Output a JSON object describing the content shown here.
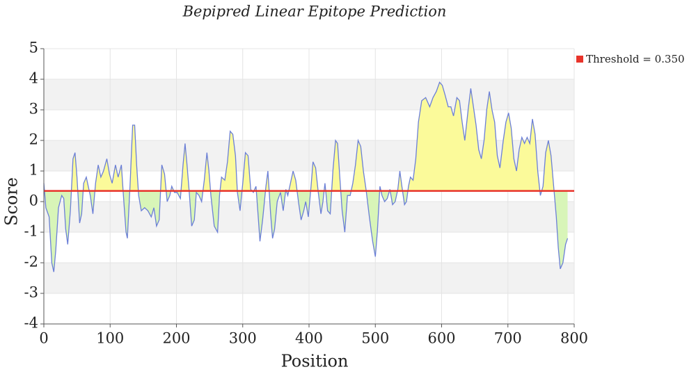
{
  "chart_data": {
    "type": "line",
    "title": "Bepipred Linear Epitope Prediction",
    "x_label": "Position",
    "y_label": "Score",
    "xlim": [
      0,
      800
    ],
    "xticks": [
      0,
      100,
      200,
      300,
      400,
      500,
      600,
      700,
      800
    ],
    "ylim": [
      -4,
      5
    ],
    "yticks": [
      -4,
      -3,
      -2,
      -1,
      0,
      1,
      2,
      3,
      4,
      5
    ],
    "grid": true,
    "threshold": {
      "name": "Threshold = 0.350",
      "value": 0.35,
      "color": "#e8332a"
    },
    "series": [
      {
        "color": "#6b7fd7",
        "above_color": "#fbfa9a",
        "below_color": "#d8f5b8",
        "x": [
          0,
          3,
          8,
          12,
          15,
          18,
          22,
          27,
          30,
          33,
          36,
          40,
          44,
          47,
          50,
          54,
          57,
          60,
          64,
          67,
          70,
          74,
          78,
          82,
          86,
          90,
          95,
          99,
          103,
          108,
          112,
          117,
          120,
          124,
          126,
          130,
          134,
          137,
          140,
          143,
          147,
          152,
          157,
          162,
          166,
          170,
          174,
          178,
          182,
          186,
          190,
          193,
          197,
          201,
          206,
          210,
          213,
          216,
          219,
          223,
          227,
          230,
          234,
          238,
          242,
          246,
          249,
          252,
          257,
          262,
          265,
          268,
          273,
          277,
          281,
          285,
          289,
          292,
          296,
          300,
          304,
          308,
          312,
          316,
          320,
          323,
          326,
          330,
          335,
          338,
          342,
          345,
          348,
          352,
          357,
          361,
          365,
          368,
          372,
          376,
          380,
          384,
          388,
          392,
          395,
          399,
          403,
          406,
          410,
          414,
          418,
          421,
          424,
          428,
          432,
          436,
          440,
          443,
          447,
          450,
          454,
          458,
          462,
          466,
          470,
          474,
          478,
          482,
          486,
          491,
          496,
          500,
          503,
          507,
          510,
          514,
          518,
          522,
          526,
          530,
          534,
          537,
          540,
          544,
          547,
          550,
          553,
          557,
          561,
          565,
          570,
          576,
          582,
          587,
          592,
          597,
          601,
          605,
          610,
          614,
          618,
          623,
          627,
          631,
          635,
          640,
          644,
          648,
          652,
          656,
          660,
          664,
          668,
          672,
          676,
          680,
          684,
          688,
          693,
          697,
          701,
          705,
          709,
          713,
          717,
          721,
          725,
          729,
          733,
          737,
          741,
          745,
          749,
          753,
          757,
          761,
          765,
          769,
          773,
          776,
          779,
          783,
          787,
          790
        ],
        "values": [
          0.6,
          -0.2,
          -0.5,
          -2.0,
          -2.3,
          -1.6,
          -0.2,
          0.2,
          0.1,
          -0.9,
          -1.4,
          -0.3,
          1.4,
          1.6,
          0.8,
          -0.7,
          -0.4,
          0.6,
          0.8,
          0.5,
          0.2,
          -0.4,
          0.6,
          1.2,
          0.8,
          1.0,
          1.4,
          0.9,
          0.6,
          1.2,
          0.8,
          1.2,
          0.2,
          -1.0,
          -1.2,
          0.5,
          2.5,
          2.5,
          1.2,
          0.2,
          -0.3,
          -0.2,
          -0.3,
          -0.5,
          -0.2,
          -0.8,
          -0.6,
          1.2,
          0.9,
          0.0,
          0.2,
          0.5,
          0.3,
          0.3,
          0.1,
          1.2,
          1.9,
          1.2,
          0.4,
          -0.8,
          -0.6,
          0.3,
          0.2,
          0.0,
          0.7,
          1.6,
          1.0,
          0.2,
          -0.8,
          -1.0,
          0.2,
          0.8,
          0.7,
          1.3,
          2.3,
          2.2,
          1.5,
          0.3,
          -0.3,
          0.6,
          1.6,
          1.5,
          0.4,
          0.3,
          0.5,
          -0.4,
          -1.3,
          -0.6,
          0.5,
          1.0,
          -0.4,
          -1.2,
          -0.9,
          0.0,
          0.3,
          -0.3,
          0.4,
          0.2,
          0.6,
          1.0,
          0.7,
          0.0,
          -0.6,
          -0.3,
          0.0,
          -0.5,
          0.5,
          1.3,
          1.1,
          0.3,
          -0.4,
          0.0,
          0.6,
          -0.3,
          -0.4,
          1.0,
          2.0,
          1.9,
          0.6,
          -0.3,
          -1.0,
          0.2,
          0.2,
          0.6,
          1.2,
          2.0,
          1.8,
          1.0,
          0.4,
          -0.5,
          -1.3,
          -1.8,
          -1.0,
          0.5,
          0.2,
          0.0,
          0.1,
          0.4,
          -0.1,
          0.0,
          0.4,
          1.0,
          0.5,
          -0.1,
          0.0,
          0.5,
          0.8,
          0.7,
          1.4,
          2.6,
          3.3,
          3.4,
          3.1,
          3.4,
          3.6,
          3.9,
          3.8,
          3.5,
          3.1,
          3.1,
          2.8,
          3.4,
          3.3,
          2.6,
          2.0,
          3.0,
          3.7,
          3.1,
          2.5,
          1.7,
          1.4,
          2.0,
          3.0,
          3.6,
          3.0,
          2.6,
          1.5,
          1.1,
          2.0,
          2.6,
          2.9,
          2.4,
          1.4,
          1.0,
          1.7,
          2.1,
          1.9,
          2.1,
          1.9,
          2.7,
          2.2,
          1.0,
          0.2,
          0.5,
          1.6,
          2.0,
          1.5,
          0.5,
          -0.5,
          -1.5,
          -2.2,
          -2.0,
          -1.4,
          -1.2
        ]
      }
    ]
  }
}
